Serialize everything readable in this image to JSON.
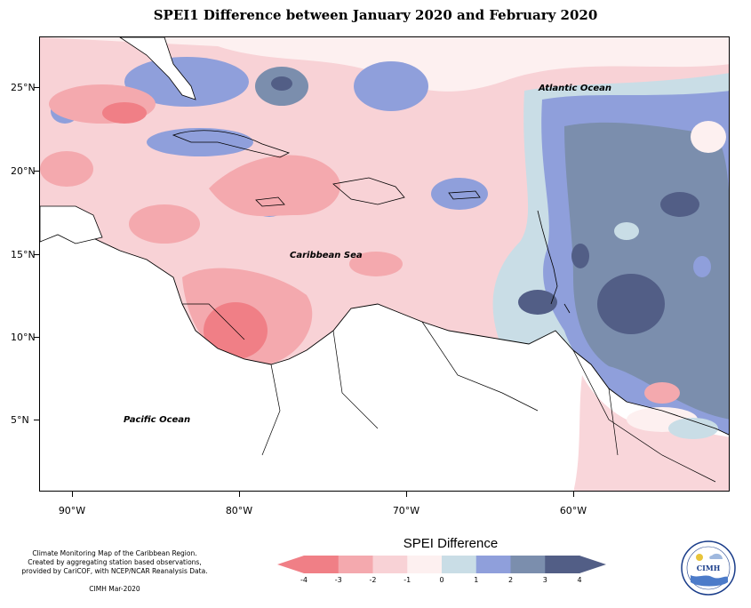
{
  "title": "SPEI1 Difference between January 2020 and February 2020",
  "map": {
    "ocean_labels": [
      {
        "id": "atlantic",
        "text": "Atlantic Ocean"
      },
      {
        "id": "caribbean",
        "text": "Caribbean Sea"
      },
      {
        "id": "pacific",
        "text": "Pacific Ocean"
      }
    ],
    "latitude_labels": [
      "25°N",
      "20°N",
      "15°N",
      "10°N",
      "5°N"
    ],
    "longitude_labels": [
      "90°W",
      "80°W",
      "70°W",
      "60°W"
    ]
  },
  "legend": {
    "title": "SPEI Difference",
    "ticks": [
      "-4",
      "-3",
      "-2",
      "-1",
      "0",
      "1",
      "2",
      "3",
      "4"
    ],
    "colors": [
      "#f07f86",
      "#f4a9ae",
      "#f8d2d6",
      "#fdf0f0",
      "#c9dde6",
      "#8f9fdb",
      "#7b8ead",
      "#525e86"
    ],
    "arrow_low_color": "#f07f86",
    "arrow_high_color": "#525e86"
  },
  "credits": {
    "line1": "Climate Monitoring Map of the Caribbean Region.",
    "line2": "Created by aggregating station based observations,",
    "line3": "provided by CariCOF, with NCEP/NCAR Reanalysis Data.",
    "stamp": "CIMH Mar-2020"
  },
  "logo": {
    "text": "CIMH"
  }
}
